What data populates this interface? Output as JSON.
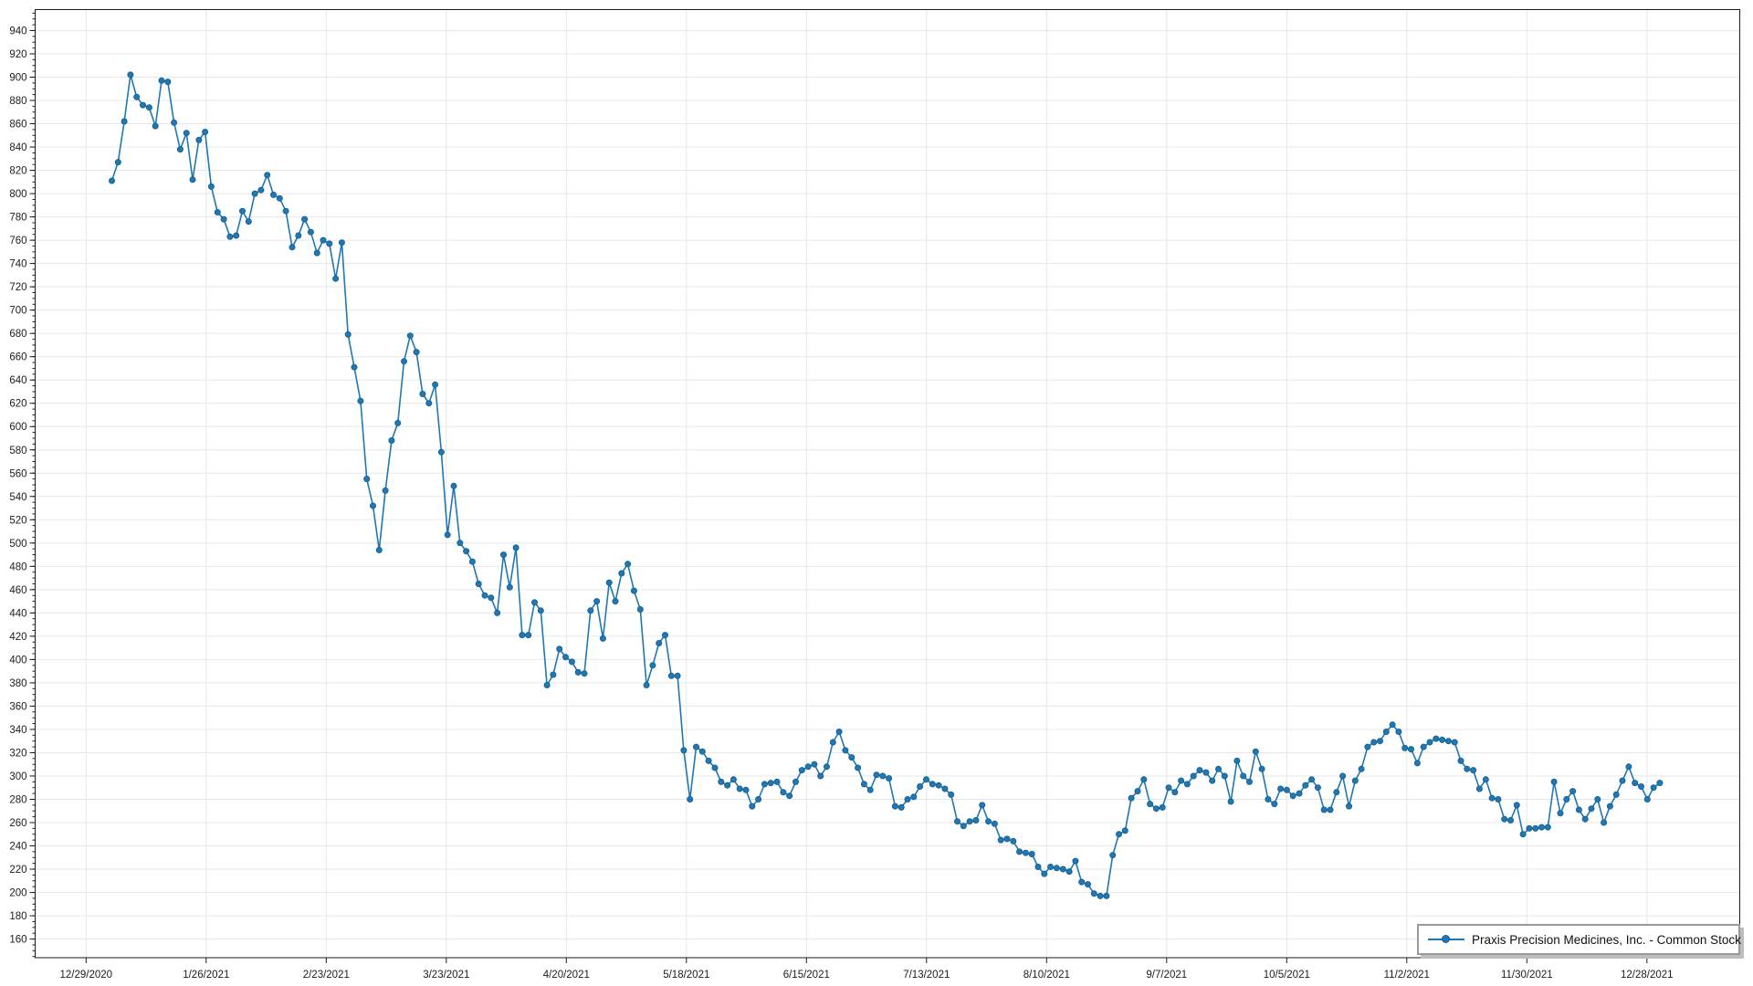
{
  "chart_data": {
    "type": "line",
    "title": "",
    "xlabel": "",
    "ylabel": "",
    "x_axis_type": "date",
    "grid": true,
    "legend_position": "bottom-right",
    "background_color": "#ffffff",
    "gridline_color": "#e7e7e7",
    "axis_color": "#1a1a1a",
    "tick_label_color": "#1c1c1c",
    "ylim": [
      144,
      958
    ],
    "y_tick_step": 20,
    "y_minor_tick_step": 5,
    "y_tick_labels": [
      160,
      180,
      200,
      220,
      240,
      260,
      280,
      300,
      320,
      340,
      360,
      380,
      400,
      420,
      440,
      460,
      480,
      500,
      520,
      540,
      560,
      580,
      600,
      620,
      640,
      660,
      680,
      700,
      720,
      740,
      760,
      780,
      800,
      820,
      840,
      860,
      880,
      900,
      920,
      940
    ],
    "x_tick_labels": [
      "12/29/2020",
      "1/26/2021",
      "2/23/2021",
      "3/23/2021",
      "4/20/2021",
      "5/18/2021",
      "6/15/2021",
      "7/13/2021",
      "8/10/2021",
      "9/7/2021",
      "10/5/2021",
      "11/2/2021",
      "11/30/2021",
      "12/28/2021"
    ],
    "series": [
      {
        "name": "Praxis Precision Medicines, Inc. - Common Stock",
        "color": "#1f77b4",
        "marker": "circle",
        "values": [
          811,
          827,
          862,
          902,
          883,
          876,
          874,
          858,
          897,
          896,
          861,
          838,
          852,
          812,
          846,
          853,
          806,
          784,
          778,
          763,
          764,
          785,
          776,
          800,
          803,
          816,
          799,
          796,
          785,
          754,
          764,
          778,
          767,
          749,
          760,
          757,
          727,
          758,
          679,
          651,
          622,
          555,
          532,
          494,
          545,
          588,
          603,
          656,
          678,
          664,
          628,
          620,
          636,
          578,
          507,
          549,
          500,
          493,
          484,
          465,
          455,
          453,
          440,
          490,
          462,
          496,
          421,
          421,
          449,
          442,
          378,
          387,
          409,
          402,
          398,
          389,
          388,
          442,
          450,
          418,
          466,
          450,
          474,
          482,
          459,
          443,
          378,
          395,
          414,
          421,
          386,
          386,
          322,
          280,
          325,
          321,
          313,
          307,
          295,
          292,
          297,
          289,
          288,
          274,
          280,
          293,
          294,
          295,
          286,
          283,
          295,
          305,
          308,
          310,
          300,
          308,
          329,
          338,
          322,
          316,
          307,
          293,
          288,
          301,
          300,
          298,
          274,
          273,
          280,
          282,
          291,
          297,
          293,
          292,
          289,
          284,
          261,
          257,
          261,
          262,
          275,
          261,
          259,
          245,
          246,
          244,
          235,
          234,
          233,
          222,
          216,
          222,
          221,
          220,
          218,
          227,
          209,
          207,
          199,
          197,
          197,
          232,
          250,
          253,
          281,
          287,
          297,
          276,
          272,
          273,
          290,
          286,
          296,
          293,
          300,
          305,
          303,
          296,
          306,
          300,
          278,
          313,
          300,
          295,
          321,
          306,
          280,
          276,
          289,
          288,
          283,
          285,
          292,
          297,
          290,
          271,
          271,
          286,
          300,
          274,
          296,
          306,
          325,
          329,
          330,
          338,
          344,
          338,
          324,
          323,
          311,
          325,
          329,
          332,
          331,
          330,
          329,
          313,
          306,
          305,
          289,
          297,
          281,
          280,
          263,
          262,
          275,
          250,
          255,
          255,
          256,
          256,
          295,
          268,
          280,
          287,
          271,
          263,
          272,
          280,
          260,
          274,
          284,
          296,
          308,
          294,
          291,
          280,
          290,
          294
        ]
      }
    ]
  },
  "legend": {
    "label": "Praxis Precision Medicines, Inc. - Common Stock"
  }
}
